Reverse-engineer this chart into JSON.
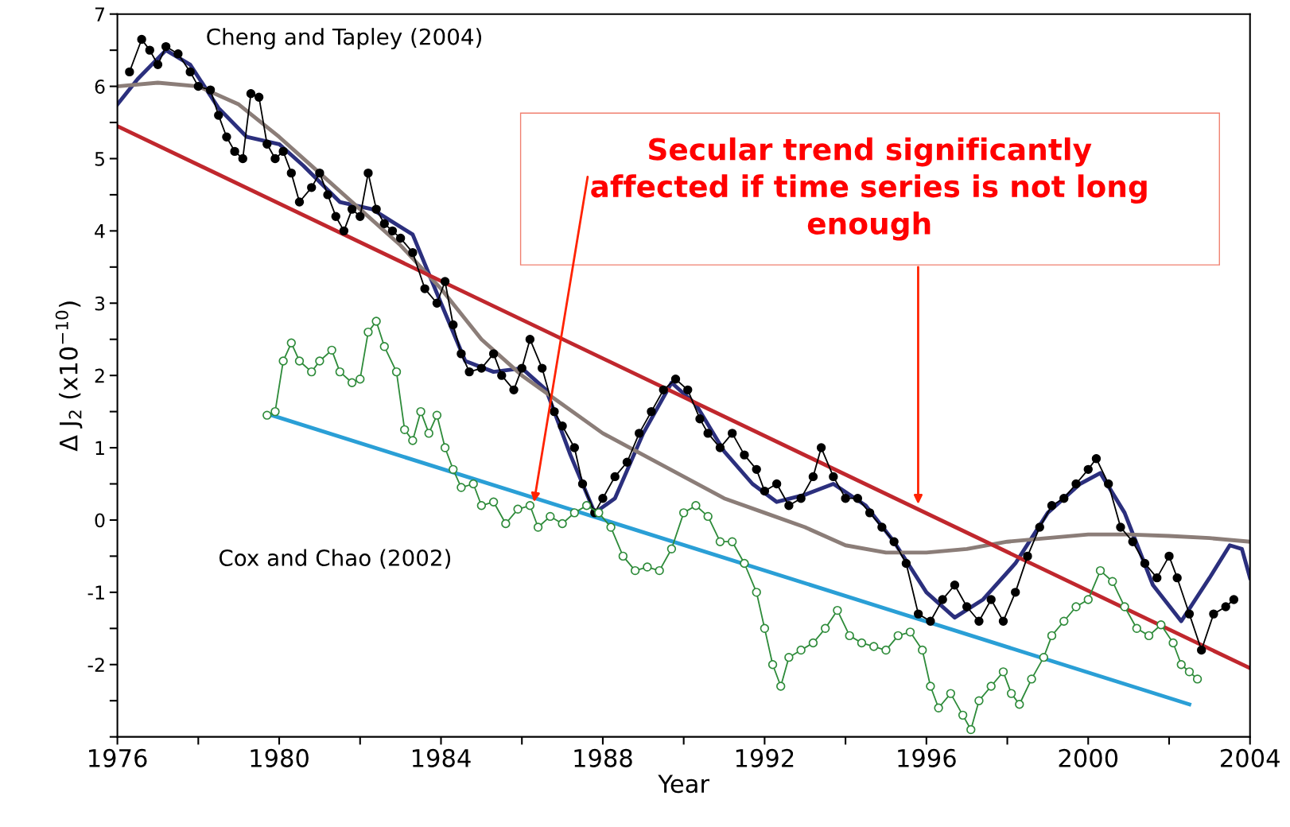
{
  "chart_data": {
    "type": "line",
    "xlabel": "Year",
    "ylabel": "Δ J$_{2}$ (x10$^{−10}$)",
    "xlim": [
      1976,
      2004
    ],
    "ylim": [
      -3,
      7
    ],
    "xticks": [
      1976,
      {
        "value": 1978,
        "label": null
      },
      1980,
      {
        "value": 1982,
        "label": null
      },
      1984,
      {
        "value": 1986,
        "label": null
      },
      1988,
      {
        "value": 1990,
        "label": null
      },
      1992,
      {
        "value": 1994,
        "label": null
      },
      1996,
      {
        "value": 1998,
        "label": null
      },
      2000,
      {
        "value": 2002,
        "label": null
      },
      2004
    ],
    "yticks": [
      {
        "value": -3,
        "label": null
      },
      {
        "value": -2.5,
        "label": null
      },
      -2,
      {
        "value": -1.5,
        "label": null
      },
      -1,
      {
        "value": -0.5,
        "label": null
      },
      0,
      {
        "value": 0.5,
        "label": null
      },
      1,
      {
        "value": 1.5,
        "label": null
      },
      2,
      {
        "value": 2.5,
        "label": null
      },
      3,
      {
        "value": 3.5,
        "label": null
      },
      4,
      {
        "value": 4.5,
        "label": null
      },
      5,
      {
        "value": 5.5,
        "label": null
      },
      6,
      {
        "value": 6.5,
        "label": null
      },
      7
    ],
    "grid": false,
    "legend": false,
    "series": [
      {
        "name": "Cheng and Tapley (2004)",
        "color": "#000000",
        "marker": "circle",
        "line_style": "solid",
        "x": [
          1976.3,
          1976.6,
          1976.8,
          1977.0,
          1977.2,
          1977.5,
          1977.8,
          1978.0,
          1978.3,
          1978.5,
          1978.7,
          1978.9,
          1979.1,
          1979.3,
          1979.5,
          1979.7,
          1979.9,
          1980.1,
          1980.3,
          1980.5,
          1980.8,
          1981.0,
          1981.2,
          1981.4,
          1981.6,
          1981.8,
          1982.0,
          1982.2,
          1982.4,
          1982.6,
          1982.8,
          1983.0,
          1983.3,
          1983.6,
          1983.9,
          1984.1,
          1984.3,
          1984.5,
          1984.7,
          1985.0,
          1985.3,
          1985.5,
          1985.8,
          1986.0,
          1986.2,
          1986.5,
          1986.8,
          1987.0,
          1987.3,
          1987.5,
          1987.8,
          1988.0,
          1988.3,
          1988.6,
          1988.9,
          1989.2,
          1989.5,
          1989.8,
          1990.1,
          1990.4,
          1990.6,
          1990.9,
          1991.2,
          1991.5,
          1991.8,
          1992.0,
          1992.3,
          1992.6,
          1992.9,
          1993.2,
          1993.4,
          1993.7,
          1994.0,
          1994.3,
          1994.6,
          1994.9,
          1995.2,
          1995.5,
          1995.8,
          1996.1,
          1996.4,
          1996.7,
          1997.0,
          1997.3,
          1997.6,
          1997.9,
          1998.2,
          1998.5,
          1998.8,
          1999.1,
          1999.4,
          1999.7,
          2000.0,
          2000.2,
          2000.5,
          2000.8,
          2001.1,
          2001.4,
          2001.7,
          2002.0,
          2002.2,
          2002.5,
          2002.8,
          2003.1,
          2003.4,
          2003.6
        ],
        "values": [
          6.2,
          6.65,
          6.5,
          6.3,
          6.55,
          6.45,
          6.2,
          6.0,
          5.95,
          5.6,
          5.3,
          5.1,
          5.0,
          5.9,
          5.85,
          5.2,
          5.0,
          5.1,
          4.8,
          4.4,
          4.6,
          4.8,
          4.5,
          4.2,
          4.0,
          4.3,
          4.2,
          4.8,
          4.3,
          4.1,
          4.0,
          3.9,
          3.7,
          3.2,
          3.0,
          3.3,
          2.7,
          2.3,
          2.05,
          2.1,
          2.3,
          2.0,
          1.8,
          2.1,
          2.5,
          2.1,
          1.5,
          1.3,
          1.0,
          0.5,
          0.1,
          0.3,
          0.6,
          0.8,
          1.2,
          1.5,
          1.8,
          1.95,
          1.8,
          1.4,
          1.2,
          1.0,
          1.2,
          0.9,
          0.7,
          0.4,
          0.5,
          0.2,
          0.3,
          0.6,
          1.0,
          0.6,
          0.3,
          0.3,
          0.1,
          -0.1,
          -0.3,
          -0.6,
          -1.3,
          -1.4,
          -1.1,
          -0.9,
          -1.2,
          -1.4,
          -1.1,
          -1.4,
          -1.0,
          -0.5,
          -0.1,
          0.2,
          0.3,
          0.5,
          0.7,
          0.85,
          0.5,
          -0.1,
          -0.3,
          -0.6,
          -0.8,
          -0.5,
          -0.8,
          -1.3,
          -1.8,
          -1.3,
          -1.2,
          -1.1
        ]
      },
      {
        "color": "#2b2f7d",
        "marker": "none",
        "line_style": "solid",
        "x": [
          1976,
          1976.5,
          1977.2,
          1977.8,
          1978.5,
          1979.2,
          1980,
          1980.6,
          1981.5,
          1982.3,
          1983.3,
          1984,
          1984.6,
          1985.3,
          1986.0,
          1986.6,
          1987.2,
          1987.8,
          1988.3,
          1989,
          1989.7,
          1990.3,
          1991,
          1991.7,
          1992.3,
          1993,
          1993.7,
          1994.5,
          1995.2,
          1996.0,
          1996.7,
          1997.4,
          1998.2,
          1999,
          1999.8,
          2000.3,
          2000.9,
          2001.6,
          2002.3,
          2003.0,
          2003.5,
          2003.8,
          2004
        ],
        "values": [
          5.75,
          6.1,
          6.5,
          6.3,
          5.7,
          5.3,
          5.2,
          4.9,
          4.4,
          4.3,
          3.95,
          3.0,
          2.2,
          2.05,
          2.1,
          1.8,
          0.9,
          0.1,
          0.3,
          1.2,
          1.9,
          1.6,
          0.95,
          0.5,
          0.25,
          0.35,
          0.5,
          0.2,
          -0.3,
          -1.0,
          -1.35,
          -1.1,
          -0.6,
          0.1,
          0.5,
          0.65,
          0.1,
          -0.9,
          -1.4,
          -0.8,
          -0.35,
          -0.4,
          -0.8
        ]
      },
      {
        "color": "#8b7d78",
        "marker": "none",
        "line_style": "solid",
        "x": [
          1976,
          1977,
          1978,
          1979,
          1980,
          1981,
          1982,
          1983,
          1984,
          1985,
          1986,
          1987,
          1988,
          1989,
          1990,
          1991,
          1992,
          1993,
          1994,
          1995,
          1996,
          1997,
          1998,
          1999,
          2000,
          2001,
          2002,
          2003,
          2004
        ],
        "values": [
          6.0,
          6.05,
          6.0,
          5.75,
          5.3,
          4.8,
          4.3,
          3.8,
          3.2,
          2.5,
          2.0,
          1.6,
          1.2,
          0.9,
          0.6,
          0.3,
          0.1,
          -0.1,
          -0.35,
          -0.45,
          -0.45,
          -0.4,
          -0.3,
          -0.25,
          -0.2,
          -0.2,
          -0.22,
          -0.25,
          -0.3
        ]
      },
      {
        "color": "#c0272d",
        "marker": "none",
        "line_style": "solid",
        "x": [
          1976,
          2004
        ],
        "values": [
          5.45,
          -2.05
        ]
      },
      {
        "color": "#2a9fd6",
        "marker": "none",
        "line_style": "solid",
        "x": [
          1979.7,
          2002.5
        ],
        "values": [
          1.47,
          -2.55
        ]
      },
      {
        "name": "Cox and Chao (2002)",
        "color": "#2e8b3a",
        "marker": "circle",
        "line_style": "solid",
        "x": [
          1979.7,
          1979.9,
          1980.1,
          1980.3,
          1980.5,
          1980.8,
          1981.0,
          1981.3,
          1981.5,
          1981.8,
          1982.0,
          1982.2,
          1982.4,
          1982.6,
          1982.9,
          1983.1,
          1983.3,
          1983.5,
          1983.7,
          1983.9,
          1984.1,
          1984.3,
          1984.5,
          1984.8,
          1985.0,
          1985.3,
          1985.6,
          1985.9,
          1986.2,
          1986.4,
          1986.7,
          1987.0,
          1987.3,
          1987.6,
          1987.9,
          1988.2,
          1988.5,
          1988.8,
          1989.1,
          1989.4,
          1989.7,
          1990.0,
          1990.3,
          1990.6,
          1990.9,
          1991.2,
          1991.5,
          1991.8,
          1992.0,
          1992.2,
          1992.4,
          1992.6,
          1992.9,
          1993.2,
          1993.5,
          1993.8,
          1994.1,
          1994.4,
          1994.7,
          1995.0,
          1995.3,
          1995.6,
          1995.9,
          1996.1,
          1996.3,
          1996.6,
          1996.9,
          1997.1,
          1997.3,
          1997.6,
          1997.9,
          1998.1,
          1998.3,
          1998.6,
          1998.9,
          1999.1,
          1999.4,
          1999.7,
          2000.0,
          2000.3,
          2000.6,
          2000.9,
          2001.2,
          2001.5,
          2001.8,
          2002.1,
          2002.3,
          2002.5,
          2002.7
        ],
        "values": [
          1.45,
          1.5,
          2.2,
          2.45,
          2.2,
          2.05,
          2.2,
          2.35,
          2.05,
          1.9,
          1.95,
          2.6,
          2.75,
          2.4,
          2.05,
          1.25,
          1.1,
          1.5,
          1.2,
          1.45,
          1.0,
          0.7,
          0.45,
          0.5,
          0.2,
          0.25,
          -0.05,
          0.15,
          0.2,
          -0.1,
          0.05,
          -0.05,
          0.1,
          0.2,
          0.1,
          -0.1,
          -0.5,
          -0.7,
          -0.65,
          -0.7,
          -0.4,
          0.1,
          0.2,
          0.05,
          -0.3,
          -0.3,
          -0.6,
          -1.0,
          -1.5,
          -2.0,
          -2.3,
          -1.9,
          -1.8,
          -1.7,
          -1.5,
          -1.25,
          -1.6,
          -1.7,
          -1.75,
          -1.8,
          -1.6,
          -1.55,
          -1.8,
          -2.3,
          -2.6,
          -2.4,
          -2.7,
          -2.9,
          -2.5,
          -2.3,
          -2.1,
          -2.4,
          -2.55,
          -2.2,
          -1.9,
          -1.6,
          -1.4,
          -1.2,
          -1.1,
          -0.7,
          -0.85,
          -1.2,
          -1.5,
          -1.6,
          -1.45,
          -1.7,
          -2.0,
          -2.1,
          -2.2
        ]
      }
    ],
    "annotations": [
      {
        "text": "Secular trend significantly affected if time series is not long enough",
        "x": 1986.3,
        "y": 0.25
      }
    ]
  }
}
